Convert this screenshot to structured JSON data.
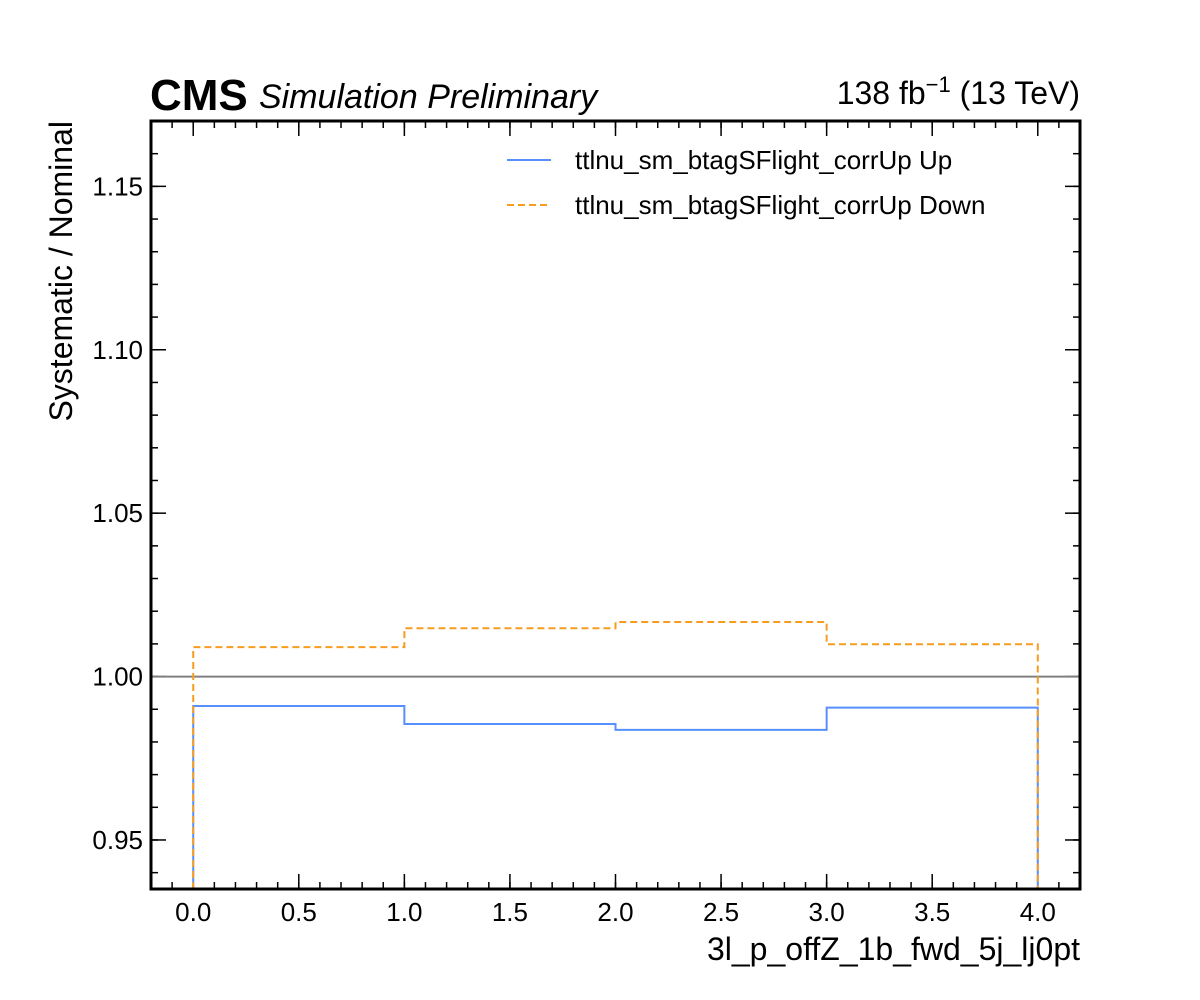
{
  "header": {
    "experiment": "CMS",
    "status": "Simulation Preliminary",
    "lumi_prefix": "138 fb",
    "lumi_exponent": "−1",
    "lumi_suffix": " (13 TeV)"
  },
  "colors": {
    "up": "#5790fc",
    "down": "#f89c20",
    "reference": "#808080",
    "frame": "#000000"
  },
  "chart_data": {
    "type": "line",
    "style": "step",
    "xlabel": "3l_p_offZ_1b_fwd_5j_lj0pt",
    "ylabel": "Systematic / Nominal",
    "xlim": [
      -0.2,
      4.2
    ],
    "ylim": [
      0.935,
      1.17
    ],
    "x_ticks": [
      0.0,
      0.5,
      1.0,
      1.5,
      2.0,
      2.5,
      3.0,
      3.5,
      4.0
    ],
    "x_tick_labels": [
      "0.0",
      "0.5",
      "1.0",
      "1.5",
      "2.0",
      "2.5",
      "3.0",
      "3.5",
      "4.0"
    ],
    "y_ticks": [
      0.95,
      1.0,
      1.05,
      1.1,
      1.15
    ],
    "y_tick_labels": [
      "0.95",
      "1.00",
      "1.05",
      "1.10",
      "1.15"
    ],
    "bin_edges": [
      0,
      1,
      2,
      3,
      4
    ],
    "reference_line": 1.0,
    "legend_position": "top-right",
    "series": [
      {
        "name": "ttlnu_sm_btagSFlight_corrUp Up",
        "values": [
          0.991,
          0.9855,
          0.9837,
          0.9905
        ],
        "linestyle": "solid"
      },
      {
        "name": "ttlnu_sm_btagSFlight_corrUp Down",
        "values": [
          1.009,
          1.0148,
          1.0167,
          1.0099
        ],
        "linestyle": "dashed"
      }
    ]
  }
}
